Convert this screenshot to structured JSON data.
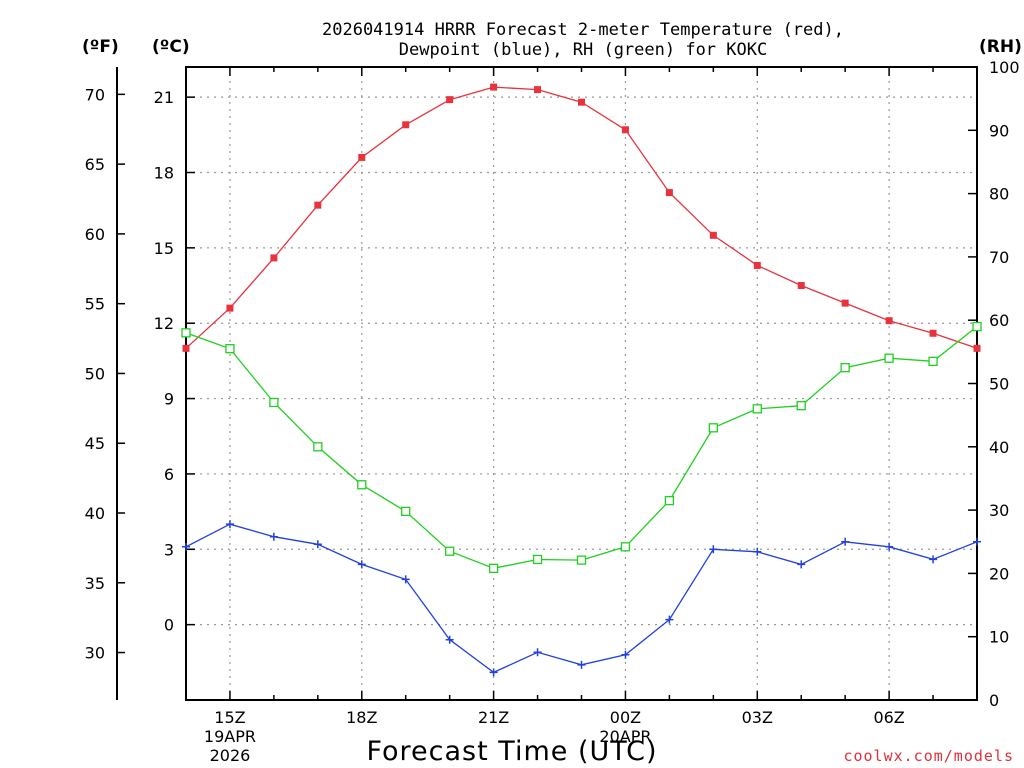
{
  "chart_data": {
    "type": "line",
    "title_line1": "2026041914 HRRR Forecast 2-meter Temperature (red),",
    "title_line2": "Dewpoint (blue), RH (green) for KOKC",
    "xlabel": "Forecast Time (UTC)",
    "credit": "coolwx.com/models",
    "units": {
      "fahrenheit": "(ºF)",
      "celsius": "(ºC)",
      "rh": "(RH)"
    },
    "x_hours": [
      14,
      15,
      16,
      17,
      18,
      19,
      20,
      21,
      22,
      23,
      24,
      25,
      26,
      27,
      28,
      29,
      30,
      31,
      32
    ],
    "x_ticks": [
      {
        "hour": 15,
        "label": "15Z",
        "date1": "19APR",
        "date2": "2026"
      },
      {
        "hour": 18,
        "label": "18Z"
      },
      {
        "hour": 21,
        "label": "21Z"
      },
      {
        "hour": 24,
        "label": "00Z",
        "date1": "20APR"
      },
      {
        "hour": 27,
        "label": "03Z"
      },
      {
        "hour": 30,
        "label": "06Z"
      }
    ],
    "celsius_axis": {
      "ylim": [
        -3.0,
        22.2
      ],
      "ticks": [
        0,
        3,
        6,
        9,
        12,
        15,
        18,
        21
      ]
    },
    "fahrenheit_axis": {
      "ticks": [
        30,
        35,
        40,
        45,
        50,
        55,
        60,
        65,
        70
      ]
    },
    "rh_axis": {
      "ylim": [
        0,
        100
      ],
      "ticks": [
        0,
        10,
        20,
        30,
        40,
        50,
        60,
        70,
        80,
        90,
        100
      ]
    },
    "series": [
      {
        "name": "Temperature",
        "unit": "C",
        "color": "#e8323c",
        "marker": "filled-square",
        "values": [
          11.0,
          12.6,
          14.6,
          16.7,
          18.6,
          19.9,
          20.9,
          21.4,
          21.3,
          20.8,
          19.7,
          17.2,
          15.5,
          14.3,
          13.5,
          12.8,
          12.1,
          11.6,
          11.0
        ]
      },
      {
        "name": "Dewpoint",
        "unit": "C",
        "color": "#2040e0",
        "marker": "plus",
        "values": [
          3.1,
          4.0,
          3.5,
          3.2,
          2.4,
          1.8,
          -0.6,
          -1.9,
          -1.1,
          -1.6,
          -1.2,
          0.2,
          3.0,
          2.9,
          2.4,
          3.3,
          3.1,
          2.6,
          3.3
        ]
      },
      {
        "name": "RH",
        "unit": "%",
        "color": "#20d020",
        "marker": "open-square",
        "values": [
          58.0,
          55.5,
          47.0,
          40.0,
          34.0,
          29.8,
          23.5,
          20.8,
          22.2,
          22.1,
          24.2,
          31.5,
          43.0,
          46.0,
          46.5,
          52.5,
          54.0,
          53.5,
          59.0
        ]
      }
    ]
  }
}
